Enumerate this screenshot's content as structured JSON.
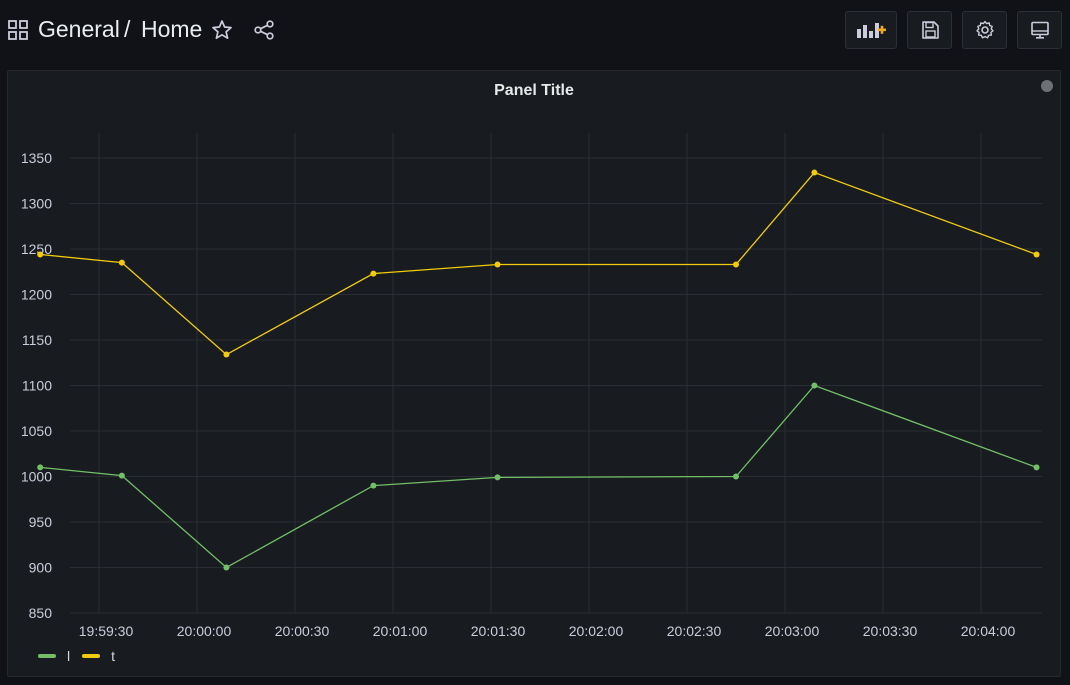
{
  "header": {
    "folder": "General",
    "separator": "/",
    "dashboard_title": "Home",
    "star_icon": "star-icon",
    "share_icon": "share-icon",
    "buttons": [
      {
        "name": "add-panel-button",
        "icon": "add-panel-icon"
      },
      {
        "name": "save-dashboard-button",
        "icon": "save-icon"
      },
      {
        "name": "dashboard-settings-button",
        "icon": "gear-icon"
      },
      {
        "name": "cycle-view-mode-button",
        "icon": "monitor-icon"
      }
    ]
  },
  "panel": {
    "title": "Panel Title"
  },
  "colors": {
    "background": "#111217",
    "panel_bg": "#181b1f",
    "series_l": "#73bf69",
    "series_t": "#f2cc0c",
    "add_accent": "#f5a623"
  },
  "chart_data": {
    "type": "line",
    "x": [
      "19:59:12",
      "19:59:37",
      "20:00:09",
      "20:00:54",
      "20:01:32",
      "20:02:45",
      "20:03:09",
      "20:04:17"
    ],
    "x_ticks": [
      "19:59:30",
      "20:00:00",
      "20:00:30",
      "20:01:00",
      "20:01:30",
      "20:02:00",
      "20:02:30",
      "20:03:00",
      "20:03:30",
      "20:04:00"
    ],
    "y_ticks": [
      850,
      900,
      950,
      1000,
      1050,
      1100,
      1150,
      1200,
      1250,
      1300,
      1350
    ],
    "ylim": [
      850,
      1350
    ],
    "series": [
      {
        "name": "l",
        "color": "#73bf69",
        "values": [
          1010,
          1001,
          900,
          990,
          999,
          1000,
          1100,
          1010
        ]
      },
      {
        "name": "t",
        "color": "#f2cc0c",
        "values": [
          1244,
          1235,
          1134,
          1223,
          1233,
          1233,
          1334,
          1244
        ]
      }
    ],
    "grid": true,
    "legend": "bottom-left"
  }
}
